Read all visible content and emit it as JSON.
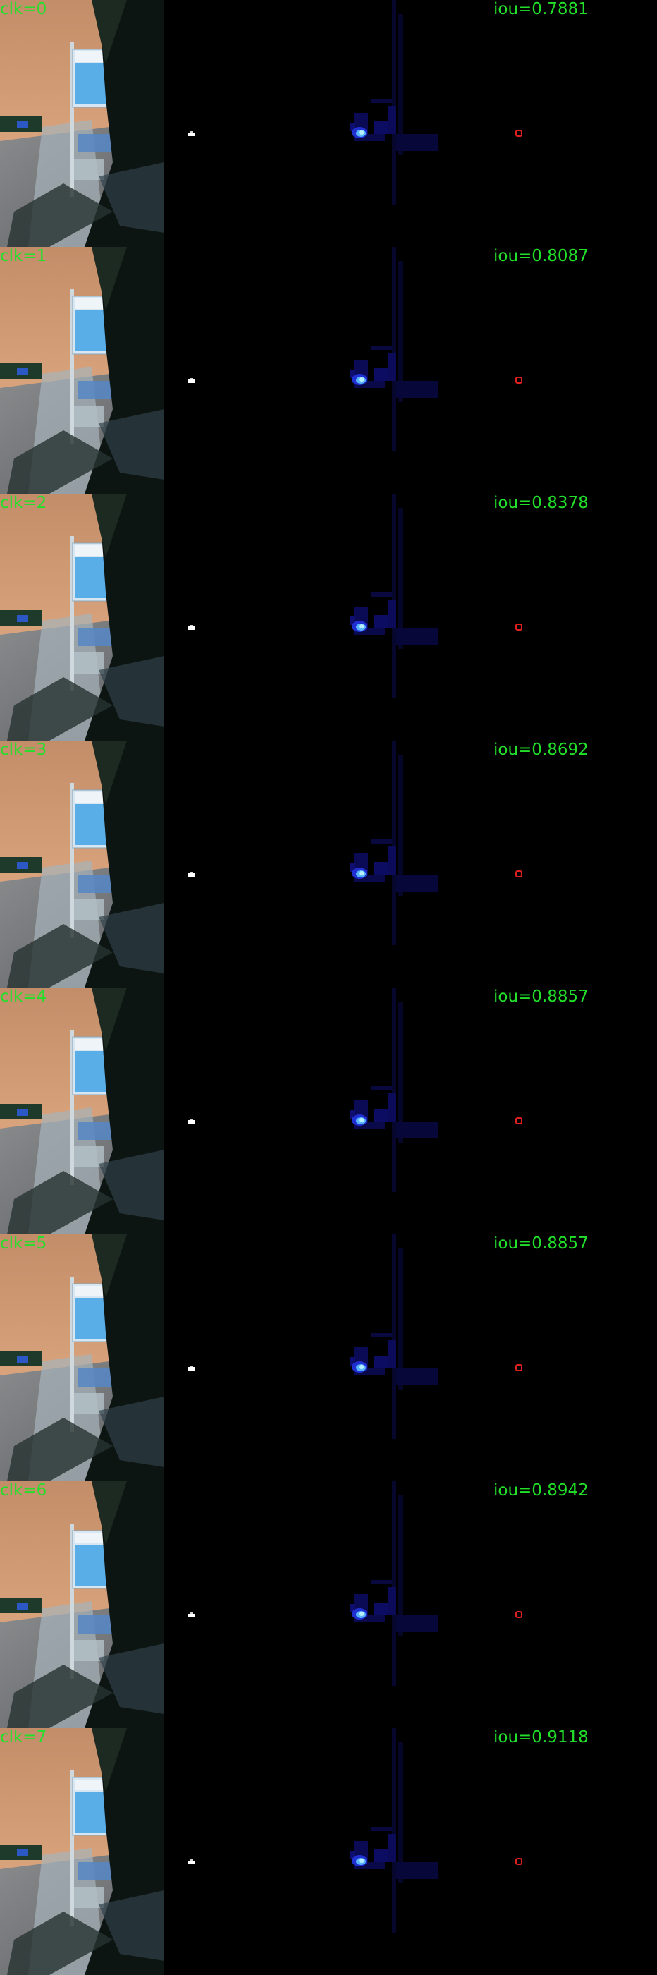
{
  "frames": [
    {
      "clk": "clk=0",
      "iou": "iou=0.7881"
    },
    {
      "clk": "clk=1",
      "iou": "iou=0.8087"
    },
    {
      "clk": "clk=2",
      "iou": "iou=0.8378"
    },
    {
      "clk": "clk=3",
      "iou": "iou=0.8692"
    },
    {
      "clk": "clk=4",
      "iou": "iou=0.8857"
    },
    {
      "clk": "clk=5",
      "iou": "iou=0.8857"
    },
    {
      "clk": "clk=6",
      "iou": "iou=0.8942"
    },
    {
      "clk": "clk=7",
      "iou": "iou=0.9118"
    }
  ],
  "colors": {
    "label_text": "#22e02a",
    "sky_top": "#c5906a",
    "sky_bottom": "#e8b089",
    "sign_blue": "#5aaee8",
    "heat_core": "#9fe0ff",
    "heat_dim": "#0a0a52",
    "prediction_outline": "#e0201e"
  }
}
